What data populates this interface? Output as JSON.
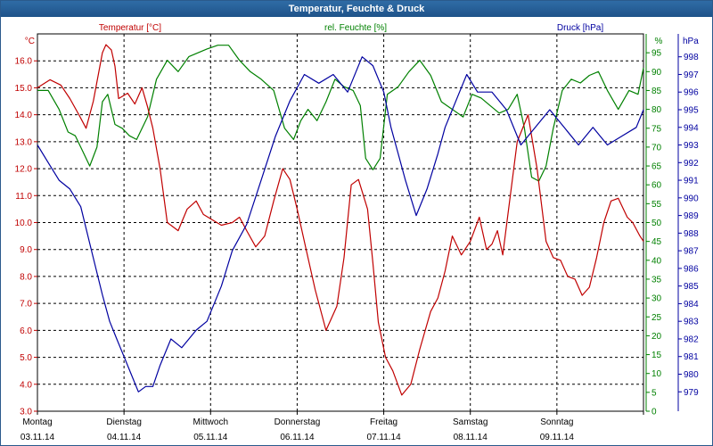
{
  "window": {
    "title": "Temperatur, Feuchte & Druck"
  },
  "chart_data": {
    "type": "line",
    "title": "Temperatur, Feuchte & Druck",
    "x_start": "03.11.14 00:00",
    "x_end": "09.11.14 24:00",
    "days": [
      {
        "name": "Montag",
        "date": "03.11.14"
      },
      {
        "name": "Dienstag",
        "date": "04.11.14"
      },
      {
        "name": "Mittwoch",
        "date": "05.11.14"
      },
      {
        "name": "Donnerstag",
        "date": "06.11.14"
      },
      {
        "name": "Freitag",
        "date": "07.11.14"
      },
      {
        "name": "Samstag",
        "date": "08.11.14"
      },
      {
        "name": "Sonntag",
        "date": "09.11.14"
      }
    ],
    "axes": {
      "temperature": {
        "label": "Temperatur [°C]",
        "unit": "°C",
        "min": 3,
        "max": 17,
        "ticks": [
          "3.0",
          "4.0",
          "5.0",
          "6.0",
          "7.0",
          "8.0",
          "9.0",
          "10.0",
          "11.0",
          "12.0",
          "13.0",
          "14.0",
          "15.0",
          "16.0"
        ],
        "color": "#c00000",
        "side": "left"
      },
      "humidity": {
        "label": "rel. Feuchte [%]",
        "unit": "%",
        "min": 0,
        "max": 100,
        "ticks": [
          "0",
          "5",
          "10",
          "15",
          "20",
          "25",
          "30",
          "35",
          "40",
          "45",
          "50",
          "55",
          "60",
          "65",
          "70",
          "75",
          "80",
          "85",
          "90",
          "95"
        ],
        "color": "#008000",
        "side": "right"
      },
      "pressure": {
        "label": "Druck [hPa]",
        "unit": "hPa",
        "min": 977.9,
        "max": 999.3,
        "ticks": [
          "979",
          "980",
          "981",
          "982",
          "983",
          "984",
          "985",
          "986",
          "987",
          "988",
          "989",
          "990",
          "991",
          "992",
          "993",
          "994",
          "995",
          "996",
          "997",
          "998"
        ],
        "color": "#0000a0",
        "side": "right"
      }
    },
    "grid": true,
    "series": [
      {
        "name": "Temperatur [°C]",
        "axis": "temperature",
        "color": "#c00000",
        "x": [
          "03.11.14 00:00",
          "03.11.14 03:30",
          "03.11.14 06:30",
          "03.11.14 09:00",
          "03.11.14 11:30",
          "03.11.14 13:30",
          "03.11.14 15:30",
          "03.11.14 18:00",
          "03.11.14 19:00",
          "03.11.14 20:30",
          "03.11.14 21:30",
          "03.11.14 22:30",
          "04.11.14 01:00",
          "04.11.14 03:00",
          "04.11.14 05:00",
          "04.11.14 06:30",
          "04.11.14 08:00",
          "04.11.14 10:00",
          "04.11.14 12:00",
          "04.11.14 15:00",
          "04.11.14 17:30",
          "04.11.14 20:00",
          "04.11.14 22:00",
          "05.11.14 00:30",
          "05.11.14 03:00",
          "05.11.14 06:00",
          "05.11.14 08:00",
          "05.11.14 10:00",
          "05.11.14 12:30",
          "05.11.14 15:00",
          "05.11.14 17:30",
          "05.11.14 20:00",
          "05.11.14 22:00",
          "06.11.14 00:00",
          "06.11.14 02:30",
          "06.11.14 05:00",
          "06.11.14 08:00",
          "06.11.14 11:00",
          "06.11.14 13:00",
          "06.11.14 15:00",
          "06.11.14 17:00",
          "06.11.14 19:30",
          "06.11.14 21:00",
          "06.11.14 22:30",
          "07.11.14 00:30",
          "07.11.14 02:30",
          "07.11.14 05:00",
          "07.11.14 07:30",
          "07.11.14 10:00",
          "07.11.14 13:00",
          "07.11.14 15:00",
          "07.11.14 17:00",
          "07.11.14 19:00",
          "07.11.14 21:30",
          "08.11.14 00:00",
          "08.11.14 02:30",
          "08.11.14 04:30",
          "08.11.14 06:00",
          "08.11.14 07:30",
          "08.11.14 09:00",
          "08.11.14 11:00",
          "08.11.14 13:00",
          "08.11.14 16:00",
          "08.11.14 18:30",
          "08.11.14 21:00",
          "08.11.14 23:00",
          "09.11.14 01:00",
          "09.11.14 03:00",
          "09.11.14 05:00",
          "09.11.14 07:00",
          "09.11.14 09:00",
          "09.11.14 11:00",
          "09.11.14 13:00",
          "09.11.14 15:00",
          "09.11.14 17:00",
          "09.11.14 19:30",
          "09.11.14 21:00",
          "09.11.14 23:00",
          "09.11.14 24:00"
        ],
        "values": [
          15.0,
          15.3,
          15.1,
          14.6,
          14.0,
          13.5,
          14.5,
          16.3,
          16.6,
          16.4,
          15.8,
          14.6,
          14.8,
          14.4,
          15.0,
          14.3,
          13.5,
          12.0,
          10.0,
          9.7,
          10.5,
          10.8,
          10.3,
          10.1,
          9.9,
          10.0,
          10.2,
          9.7,
          9.1,
          9.5,
          10.8,
          12.0,
          11.6,
          10.5,
          9.0,
          7.5,
          6.0,
          6.9,
          8.7,
          11.4,
          11.6,
          10.5,
          8.5,
          6.3,
          5.0,
          4.5,
          3.6,
          4.0,
          5.3,
          6.7,
          7.2,
          8.2,
          9.5,
          8.8,
          9.3,
          10.2,
          9.0,
          9.2,
          9.7,
          8.8,
          10.9,
          13.0,
          14.0,
          12.0,
          9.3,
          8.7,
          8.6,
          8.0,
          7.9,
          7.3,
          7.6,
          8.7,
          10.0,
          10.8,
          10.9,
          10.2,
          10.0,
          9.5,
          9.3
        ]
      },
      {
        "name": "rel. Feuchte [%]",
        "axis": "humidity",
        "color": "#008000",
        "x": [
          "03.11.14 00:00",
          "03.11.14 03:00",
          "03.11.14 06:00",
          "03.11.14 08:30",
          "03.11.14 10:30",
          "03.11.14 12:30",
          "03.11.14 14:30",
          "03.11.14 16:30",
          "03.11.14 18:00",
          "03.11.14 19:30",
          "03.11.14 21:30",
          "03.11.14 23:30",
          "04.11.14 01:30",
          "04.11.14 03:30",
          "04.11.14 06:30",
          "04.11.14 09:00",
          "04.11.14 12:00",
          "04.11.14 15:00",
          "04.11.14 18:00",
          "04.11.14 20:30",
          "04.11.14 23:00",
          "05.11.14 02:00",
          "05.11.14 05:00",
          "05.11.14 08:00",
          "05.11.14 11:00",
          "05.11.14 14:00",
          "05.11.14 17:30",
          "05.11.14 20:30",
          "05.11.14 23:00",
          "06.11.14 01:00",
          "06.11.14 03:00",
          "06.11.14 05:30",
          "06.11.14 08:00",
          "06.11.14 10:30",
          "06.11.14 13:00",
          "06.11.14 15:30",
          "06.11.14 17:30",
          "06.11.14 19:00",
          "06.11.14 21:00",
          "06.11.14 23:00",
          "07.11.14 01:00",
          "07.11.14 04:00",
          "07.11.14 07:00",
          "07.11.14 10:00",
          "07.11.14 13:00",
          "07.11.14 16:00",
          "07.11.14 19:00",
          "07.11.14 22:00",
          "08.11.14 00:30",
          "08.11.14 03:00",
          "08.11.14 05:30",
          "08.11.14 08:00",
          "08.11.14 10:30",
          "08.11.14 13:00",
          "08.11.14 15:00",
          "08.11.14 17:00",
          "08.11.14 19:00",
          "08.11.14 21:00",
          "08.11.14 23:00",
          "09.11.14 01:30",
          "09.11.14 04:00",
          "09.11.14 06:30",
          "09.11.14 09:00",
          "09.11.14 11:30",
          "09.11.14 14:00",
          "09.11.14 17:00",
          "09.11.14 20:00",
          "09.11.14 22:30",
          "09.11.14 24:00"
        ],
        "values": [
          85,
          85,
          80,
          74,
          73,
          69,
          65,
          70,
          82,
          84,
          76,
          75,
          73,
          72,
          78,
          88,
          93,
          90,
          94,
          95,
          96,
          97,
          97,
          93,
          90,
          88,
          85,
          75,
          72,
          77,
          80,
          77,
          82,
          88,
          86,
          85,
          81,
          67,
          64,
          67,
          84,
          86,
          90,
          93,
          89,
          82,
          80,
          78,
          84,
          83,
          81,
          79,
          80,
          84,
          75,
          62,
          61,
          65,
          75,
          85,
          88,
          87,
          89,
          90,
          85,
          80,
          85,
          84,
          91
        ]
      },
      {
        "name": "Druck [hPa]",
        "axis": "pressure",
        "color": "#0000a0",
        "x": [
          "03.11.14 00:00",
          "03.11.14 03:00",
          "03.11.14 06:00",
          "03.11.14 09:00",
          "03.11.14 12:00",
          "03.11.14 15:00",
          "03.11.14 18:00",
          "03.11.14 20:00",
          "03.11.14 22:00",
          "04.11.14 00:00",
          "04.11.14 02:00",
          "04.11.14 04:00",
          "04.11.14 06:00",
          "04.11.14 08:00",
          "04.11.14 10:00",
          "04.11.14 13:00",
          "04.11.14 16:00",
          "04.11.14 20:00",
          "04.11.14 23:00",
          "05.11.14 03:00",
          "05.11.14 06:00",
          "05.11.14 10:00",
          "05.11.14 14:00",
          "05.11.14 18:00",
          "05.11.14 22:00",
          "06.11.14 02:00",
          "06.11.14 06:00",
          "06.11.14 10:00",
          "06.11.14 14:00",
          "06.11.14 18:00",
          "06.11.14 21:00",
          "07.11.14 00:00",
          "07.11.14 02:00",
          "07.11.14 04:00",
          "07.11.14 06:00",
          "07.11.14 09:00",
          "07.11.14 12:00",
          "07.11.14 15:00",
          "07.11.14 17:00",
          "07.11.14 19:00",
          "07.11.14 21:00",
          "07.11.14 23:00",
          "08.11.14 02:00",
          "08.11.14 06:00",
          "08.11.14 10:00",
          "08.11.14 14:00",
          "08.11.14 18:00",
          "08.11.14 22:00",
          "09.11.14 02:00",
          "09.11.14 06:00",
          "09.11.14 10:00",
          "09.11.14 14:00",
          "09.11.14 18:00",
          "09.11.14 22:00",
          "09.11.14 24:00"
        ],
        "values": [
          993.0,
          992.0,
          991.0,
          990.5,
          989.5,
          987.0,
          984.5,
          983.0,
          982.0,
          981.0,
          980.0,
          979.0,
          979.3,
          979.3,
          980.5,
          982.0,
          981.5,
          982.5,
          983.0,
          985.0,
          987.0,
          988.5,
          991.0,
          993.5,
          995.5,
          997.0,
          996.5,
          997.0,
          996.0,
          998.0,
          997.5,
          996.0,
          994.0,
          992.5,
          991.0,
          989.0,
          990.5,
          992.5,
          994.0,
          995.0,
          996.0,
          997.0,
          996.0,
          996.0,
          995.0,
          993.0,
          994.0,
          995.0,
          994.0,
          993.0,
          994.0,
          993.0,
          993.5,
          994.0,
          995.0
        ]
      }
    ]
  }
}
